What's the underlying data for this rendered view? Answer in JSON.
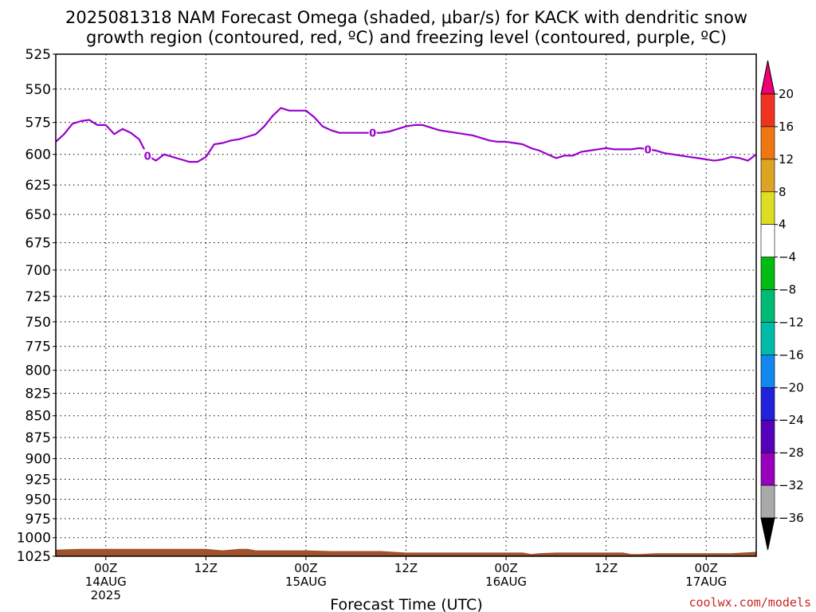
{
  "title_lines": [
    "2025081318 NAM Forecast Omega (shaded, μbar/s) for KACK with dendritic snow",
    "growth region (contoured, red, ºC) and freezing level (contoured, purple, ºC)"
  ],
  "credit": "coolwx.com/models",
  "chart_data": {
    "type": "line",
    "title": "2025081318 NAM Forecast Omega (shaded, μbar/s) for KACK with dendritic snow growth region (contoured, red, ºC) and freezing level (contoured, purple, ºC)",
    "xlabel": "Forecast Time (UTC)",
    "ylabel": "",
    "x_unit": "forecast hour from 2025081318",
    "xlim": [
      0,
      84
    ],
    "y_unit": "mb",
    "ylim": [
      525,
      1025
    ],
    "y_scale": "log",
    "y_inverted": true,
    "grid": true,
    "yticks": [
      525,
      550,
      575,
      600,
      625,
      650,
      675,
      700,
      725,
      750,
      775,
      800,
      825,
      850,
      875,
      900,
      925,
      950,
      975,
      1000,
      1025
    ],
    "xticks": [
      {
        "x": 6,
        "label": "00Z",
        "day": "14AUG",
        "year": "2025"
      },
      {
        "x": 18,
        "label": "12Z",
        "day": "",
        "year": ""
      },
      {
        "x": 30,
        "label": "00Z",
        "day": "15AUG",
        "year": ""
      },
      {
        "x": 42,
        "label": "12Z",
        "day": "",
        "year": ""
      },
      {
        "x": 54,
        "label": "00Z",
        "day": "16AUG",
        "year": ""
      },
      {
        "x": 66,
        "label": "12Z",
        "day": "",
        "year": ""
      },
      {
        "x": 78,
        "label": "00Z",
        "day": "17AUG",
        "year": ""
      }
    ],
    "series": [
      {
        "name": "",
        "level": "0",
        "color": "#9900cc",
        "x": [
          0,
          1,
          2,
          3,
          4,
          5,
          6,
          7,
          8,
          9,
          10,
          11,
          12,
          13,
          14,
          15,
          16,
          17,
          18,
          19,
          20,
          21,
          22,
          23,
          24,
          25,
          26,
          27,
          28,
          29,
          30,
          31,
          32,
          33,
          34,
          35,
          36,
          37,
          38,
          39,
          40,
          41,
          42,
          43,
          44,
          45,
          46,
          47,
          48,
          49,
          50,
          51,
          52,
          53,
          54,
          55,
          56,
          57,
          58,
          59,
          60,
          61,
          62,
          63,
          64,
          65,
          66,
          67,
          68,
          69,
          70,
          71,
          72,
          73,
          74,
          75,
          76,
          77,
          78,
          79,
          80,
          81,
          82,
          83,
          84
        ],
        "y": [
          590,
          584,
          576,
          574,
          573,
          577,
          577,
          584,
          580,
          583,
          588,
          601,
          605,
          600,
          602,
          604,
          606,
          606,
          602,
          592,
          591,
          589,
          588,
          586,
          584,
          578,
          570,
          564,
          566,
          566,
          566,
          571,
          578,
          581,
          583,
          583,
          583,
          583,
          583,
          583,
          582,
          580,
          578,
          577,
          577,
          579,
          581,
          582,
          583,
          584,
          585,
          587,
          589,
          590,
          590,
          591,
          592,
          595,
          597,
          600,
          603,
          601,
          601,
          598,
          597,
          596,
          595,
          596,
          596,
          596,
          595,
          596,
          597,
          599,
          600,
          601,
          602,
          603,
          604,
          605,
          604,
          602,
          603,
          605,
          600
        ]
      }
    ],
    "surface": {
      "name": "",
      "color": "#a0522d",
      "x": [
        0,
        3,
        6,
        9,
        12,
        15,
        18,
        19,
        20,
        21,
        22,
        23,
        24,
        27,
        30,
        33,
        36,
        39,
        42,
        45,
        48,
        51,
        54,
        56,
        57,
        58,
        60,
        63,
        66,
        68,
        69,
        70,
        72,
        75,
        78,
        81,
        84
      ],
      "y": [
        1016,
        1015,
        1015,
        1015,
        1015,
        1015,
        1015,
        1016,
        1017,
        1016,
        1015,
        1015,
        1017,
        1017,
        1017,
        1018,
        1018,
        1018,
        1020,
        1020,
        1020,
        1020,
        1020,
        1020,
        1022,
        1021,
        1020,
        1020,
        1020,
        1020,
        1022,
        1022,
        1021,
        1021,
        1021,
        1021,
        1019
      ]
    },
    "colorbar": {
      "labels": [
        "20",
        "16",
        "12",
        "8",
        "4",
        "−4",
        "−8",
        "−12",
        "−16",
        "−20",
        "−24",
        "−28",
        "−32",
        "−36"
      ],
      "colors": [
        "#f00070",
        "#ee3322",
        "#ee7711",
        "#dda322",
        "#dddd22",
        "#ffffff",
        "#00bb11",
        "#00bb77",
        "#00bbaa",
        "#1188ee",
        "#2222dd",
        "#5500bb",
        "#9900bb",
        "#aaaaaa",
        "#000000"
      ]
    }
  }
}
